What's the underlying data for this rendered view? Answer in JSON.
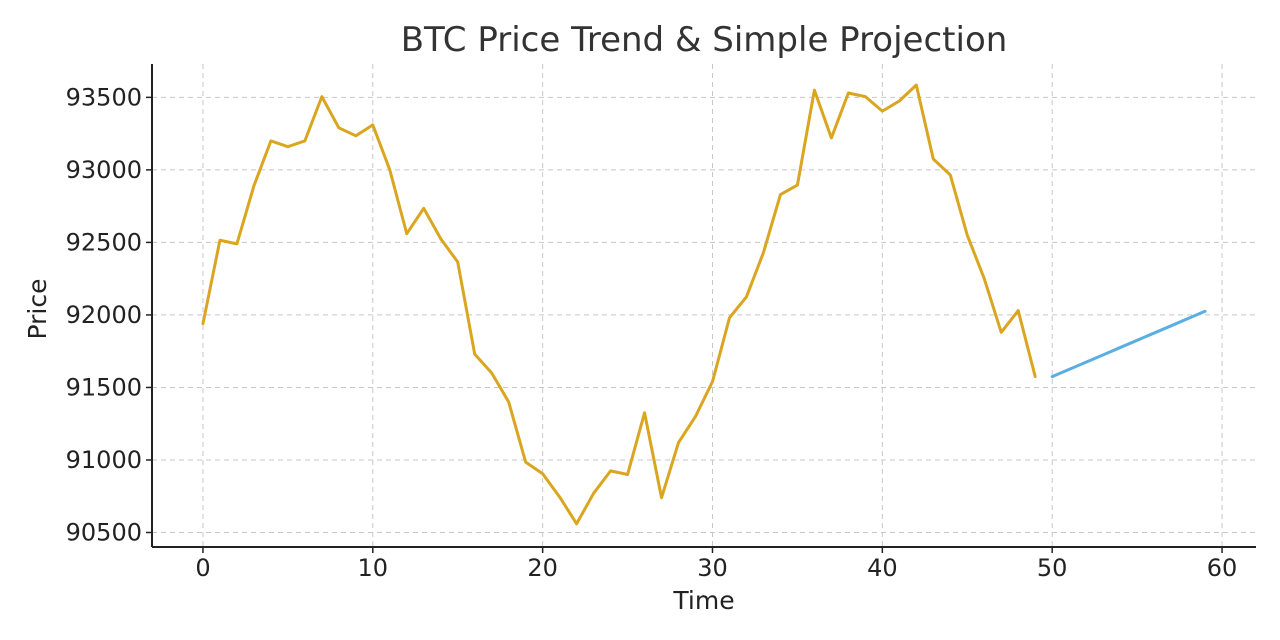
{
  "chart_data": {
    "type": "line",
    "title": "BTC Price Trend & Simple Projection",
    "xlabel": "Time",
    "ylabel": "Price",
    "xlim": [
      -3,
      62
    ],
    "ylim": [
      90400,
      93730
    ],
    "x_ticks": [
      0,
      10,
      20,
      30,
      40,
      50,
      60
    ],
    "y_ticks": [
      90500,
      91000,
      91500,
      92000,
      92500,
      93000,
      93500
    ],
    "grid": true,
    "series": [
      {
        "color": "#daa520",
        "x": [
          0,
          1,
          2,
          3,
          4,
          5,
          6,
          7,
          8,
          9,
          10,
          11,
          12,
          13,
          14,
          15,
          16,
          17,
          18,
          19,
          20,
          21,
          22,
          23,
          24,
          25,
          26,
          27,
          28,
          29,
          30,
          31,
          32,
          33,
          34,
          35,
          36,
          37,
          38,
          39,
          40,
          41,
          42,
          43,
          44,
          45,
          46,
          47,
          48,
          49
        ],
        "values": [
          91940,
          92515,
          92490,
          92890,
          93200,
          93160,
          93200,
          93505,
          93290,
          93235,
          93310,
          93000,
          92560,
          92735,
          92525,
          92365,
          91730,
          91600,
          91400,
          90985,
          90905,
          90745,
          90560,
          90770,
          90925,
          90900,
          91325,
          90740,
          91120,
          91300,
          91540,
          91980,
          92125,
          92430,
          92830,
          92895,
          93550,
          93220,
          93530,
          93505,
          93405,
          93475,
          93585,
          93075,
          92965,
          92550,
          92250,
          91880,
          92030,
          91575
        ]
      },
      {
        "color": "#5bafe0",
        "x": [
          50,
          51,
          52,
          53,
          54,
          55,
          56,
          57,
          58,
          59
        ],
        "values": [
          91575,
          91625,
          91675,
          91725,
          91775,
          91825,
          91875,
          91925,
          91975,
          92025
        ]
      }
    ]
  }
}
